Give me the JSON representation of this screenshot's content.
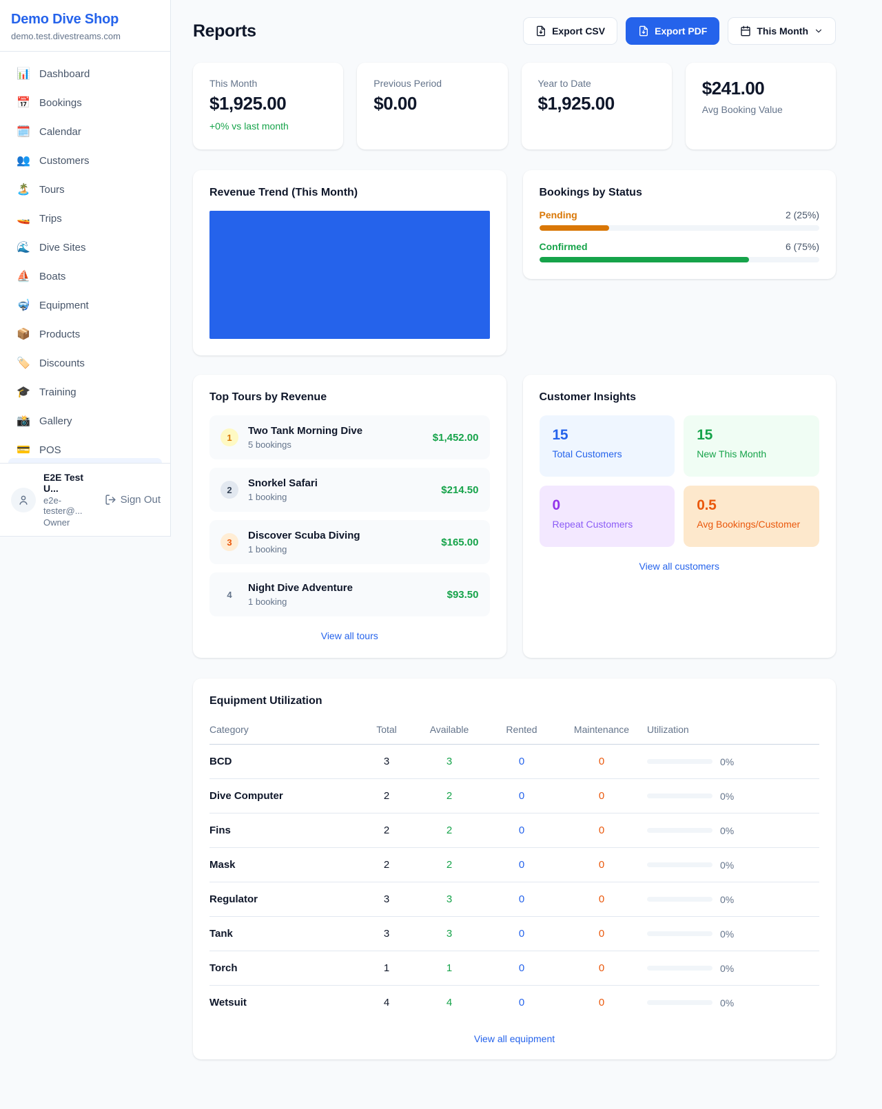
{
  "colors": {
    "accent_blue": "#2563eb",
    "green": "#16a34a",
    "pending_orange": "#d97706",
    "maintenance_orange": "#ea580c",
    "purple": "#9333ea"
  },
  "sidebar": {
    "shop_name": "Demo Dive Shop",
    "shop_domain": "demo.test.divestreams.com",
    "items": [
      {
        "icon": "📊",
        "label": "Dashboard"
      },
      {
        "icon": "📅",
        "label": "Bookings"
      },
      {
        "icon": "🗓️",
        "label": "Calendar"
      },
      {
        "icon": "👥",
        "label": "Customers"
      },
      {
        "icon": "🏝️",
        "label": "Tours"
      },
      {
        "icon": "🚤",
        "label": "Trips"
      },
      {
        "icon": "🌊",
        "label": "Dive Sites"
      },
      {
        "icon": "⛵",
        "label": "Boats"
      },
      {
        "icon": "🤿",
        "label": "Equipment"
      },
      {
        "icon": "📦",
        "label": "Products"
      },
      {
        "icon": "🏷️",
        "label": "Discounts"
      },
      {
        "icon": "🎓",
        "label": "Training"
      },
      {
        "icon": "📸",
        "label": "Gallery"
      },
      {
        "icon": "💳",
        "label": "POS"
      }
    ],
    "user": {
      "name": "E2E Test U...",
      "email": "e2e-tester@...",
      "role": "Owner",
      "sign_out_label": "Sign Out"
    }
  },
  "header": {
    "title": "Reports",
    "export_csv_label": "Export CSV",
    "export_pdf_label": "Export PDF",
    "period_label": "This Month"
  },
  "stats": [
    {
      "label": "This Month",
      "value": "$1,925.00",
      "sub": "+0% vs last month"
    },
    {
      "label": "Previous Period",
      "value": "$0.00"
    },
    {
      "label": "Year to Date",
      "value": "$1,925.00"
    },
    {
      "label": "Avg Booking Value",
      "value": "$241.00"
    }
  ],
  "revenue_trend": {
    "title": "Revenue Trend (This Month)"
  },
  "bookings_by_status": {
    "title": "Bookings by Status",
    "rows": [
      {
        "label": "Pending",
        "value_text": "2 (25%)",
        "percent": 25
      },
      {
        "label": "Confirmed",
        "value_text": "6 (75%)",
        "percent": 75
      }
    ]
  },
  "chart_data": [
    {
      "type": "area",
      "title": "Revenue Trend (This Month)",
      "series": [
        {
          "name": "Revenue",
          "values": [
            1925
          ]
        }
      ],
      "note": "solid filled block, no axes or tick labels visible"
    },
    {
      "type": "bar",
      "title": "Bookings by Status",
      "categories": [
        "Pending",
        "Confirmed"
      ],
      "values": [
        2,
        6
      ],
      "labels": [
        "2 (25%)",
        "6 (75%)"
      ]
    }
  ],
  "top_tours": {
    "title": "Top Tours by Revenue",
    "link_label": "View all tours",
    "items": [
      {
        "rank": "1",
        "name": "Two Tank Morning Dive",
        "bookings": "5 bookings",
        "revenue": "$1,452.00"
      },
      {
        "rank": "2",
        "name": "Snorkel Safari",
        "bookings": "1 booking",
        "revenue": "$214.50"
      },
      {
        "rank": "3",
        "name": "Discover Scuba Diving",
        "bookings": "1 booking",
        "revenue": "$165.00"
      },
      {
        "rank": "4",
        "name": "Night Dive Adventure",
        "bookings": "1 booking",
        "revenue": "$93.50"
      }
    ]
  },
  "customer_insights": {
    "title": "Customer Insights",
    "link_label": "View all customers",
    "tiles": [
      {
        "value": "15",
        "label": "Total Customers"
      },
      {
        "value": "15",
        "label": "New This Month"
      },
      {
        "value": "0",
        "label": "Repeat Customers"
      },
      {
        "value": "0.5",
        "label": "Avg Bookings/Customer"
      }
    ]
  },
  "equipment": {
    "title": "Equipment Utilization",
    "link_label": "View all equipment",
    "columns": [
      "Category",
      "Total",
      "Available",
      "Rented",
      "Maintenance",
      "Utilization"
    ],
    "rows": [
      {
        "category": "BCD",
        "total": "3",
        "available": "3",
        "rented": "0",
        "maintenance": "0",
        "utilization": "0%",
        "percent": 0
      },
      {
        "category": "Dive Computer",
        "total": "2",
        "available": "2",
        "rented": "0",
        "maintenance": "0",
        "utilization": "0%",
        "percent": 0
      },
      {
        "category": "Fins",
        "total": "2",
        "available": "2",
        "rented": "0",
        "maintenance": "0",
        "utilization": "0%",
        "percent": 0
      },
      {
        "category": "Mask",
        "total": "2",
        "available": "2",
        "rented": "0",
        "maintenance": "0",
        "utilization": "0%",
        "percent": 0
      },
      {
        "category": "Regulator",
        "total": "3",
        "available": "3",
        "rented": "0",
        "maintenance": "0",
        "utilization": "0%",
        "percent": 0
      },
      {
        "category": "Tank",
        "total": "3",
        "available": "3",
        "rented": "0",
        "maintenance": "0",
        "utilization": "0%",
        "percent": 0
      },
      {
        "category": "Torch",
        "total": "1",
        "available": "1",
        "rented": "0",
        "maintenance": "0",
        "utilization": "0%",
        "percent": 0
      },
      {
        "category": "Wetsuit",
        "total": "4",
        "available": "4",
        "rented": "0",
        "maintenance": "0",
        "utilization": "0%",
        "percent": 0
      }
    ]
  }
}
